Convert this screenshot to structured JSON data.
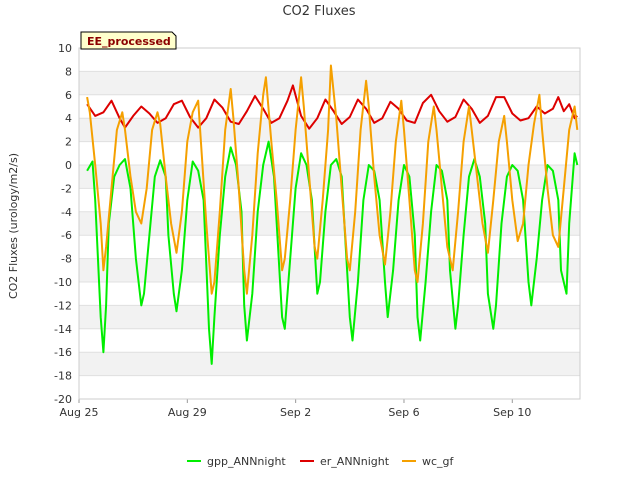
{
  "chart_data": {
    "type": "line",
    "title": "CO2 Fluxes",
    "ylabel": "CO2 Fluxes (urology/m2/s)",
    "xlabel": "",
    "badge": "EE_processed",
    "ylim": [
      -20,
      10
    ],
    "yticks": [
      10,
      8,
      6,
      4,
      2,
      0,
      -2,
      -4,
      -6,
      -8,
      -10,
      -12,
      -14,
      -16,
      -18,
      -20
    ],
    "xlim_days": [
      0,
      18.5
    ],
    "xticks": [
      {
        "day": 0,
        "label": "Aug 25"
      },
      {
        "day": 4,
        "label": "Aug 29"
      },
      {
        "day": 8,
        "label": "Sep 2"
      },
      {
        "day": 12,
        "label": "Sep 6"
      },
      {
        "day": 16,
        "label": "Sep 10"
      }
    ],
    "series": [
      {
        "name": "gpp_ANNnight",
        "color": "#00ee00",
        "points": [
          [
            0.3,
            -0.5
          ],
          [
            0.5,
            0.3
          ],
          [
            0.6,
            -3
          ],
          [
            0.8,
            -13
          ],
          [
            0.9,
            -16
          ],
          [
            1.0,
            -12
          ],
          [
            1.1,
            -5
          ],
          [
            1.3,
            -1
          ],
          [
            1.5,
            0
          ],
          [
            1.7,
            0.5
          ],
          [
            1.9,
            -2
          ],
          [
            2.1,
            -8
          ],
          [
            2.3,
            -12
          ],
          [
            2.4,
            -11
          ],
          [
            2.6,
            -6
          ],
          [
            2.8,
            -1
          ],
          [
            3.0,
            0.4
          ],
          [
            3.2,
            -1
          ],
          [
            3.3,
            -6
          ],
          [
            3.5,
            -11
          ],
          [
            3.6,
            -12.5
          ],
          [
            3.8,
            -9
          ],
          [
            4.0,
            -3
          ],
          [
            4.2,
            0.3
          ],
          [
            4.4,
            -0.5
          ],
          [
            4.6,
            -3
          ],
          [
            4.8,
            -14
          ],
          [
            4.9,
            -17
          ],
          [
            5.0,
            -13
          ],
          [
            5.2,
            -6
          ],
          [
            5.4,
            -1
          ],
          [
            5.6,
            1.5
          ],
          [
            5.8,
            0
          ],
          [
            6.0,
            -4
          ],
          [
            6.1,
            -12
          ],
          [
            6.2,
            -15
          ],
          [
            6.4,
            -11
          ],
          [
            6.6,
            -4
          ],
          [
            6.8,
            0
          ],
          [
            7.0,
            2
          ],
          [
            7.2,
            -1
          ],
          [
            7.3,
            -5
          ],
          [
            7.5,
            -13
          ],
          [
            7.6,
            -14
          ],
          [
            7.8,
            -8
          ],
          [
            8.0,
            -2
          ],
          [
            8.2,
            1
          ],
          [
            8.4,
            0
          ],
          [
            8.6,
            -3
          ],
          [
            8.8,
            -11
          ],
          [
            8.9,
            -10
          ],
          [
            9.1,
            -4
          ],
          [
            9.3,
            0
          ],
          [
            9.5,
            0.5
          ],
          [
            9.7,
            -1
          ],
          [
            9.8,
            -5
          ],
          [
            10.0,
            -13
          ],
          [
            10.1,
            -15
          ],
          [
            10.3,
            -10
          ],
          [
            10.5,
            -3
          ],
          [
            10.7,
            0
          ],
          [
            10.9,
            -0.5
          ],
          [
            11.1,
            -3
          ],
          [
            11.3,
            -10
          ],
          [
            11.4,
            -13
          ],
          [
            11.6,
            -9
          ],
          [
            11.8,
            -3
          ],
          [
            12.0,
            0
          ],
          [
            12.2,
            -1
          ],
          [
            12.4,
            -6
          ],
          [
            12.5,
            -13
          ],
          [
            12.6,
            -15
          ],
          [
            12.8,
            -10
          ],
          [
            13.0,
            -4
          ],
          [
            13.2,
            0
          ],
          [
            13.4,
            -0.5
          ],
          [
            13.6,
            -3
          ],
          [
            13.7,
            -9
          ],
          [
            13.9,
            -14
          ],
          [
            14.0,
            -12
          ],
          [
            14.2,
            -6
          ],
          [
            14.4,
            -1
          ],
          [
            14.6,
            0.5
          ],
          [
            14.8,
            -1
          ],
          [
            15.0,
            -5
          ],
          [
            15.1,
            -11
          ],
          [
            15.3,
            -14
          ],
          [
            15.4,
            -12
          ],
          [
            15.6,
            -5
          ],
          [
            15.8,
            -1
          ],
          [
            16.0,
            0
          ],
          [
            16.2,
            -0.5
          ],
          [
            16.4,
            -3
          ],
          [
            16.6,
            -10
          ],
          [
            16.7,
            -12
          ],
          [
            16.9,
            -8
          ],
          [
            17.1,
            -3
          ],
          [
            17.3,
            0
          ],
          [
            17.5,
            -0.5
          ],
          [
            17.7,
            -3
          ],
          [
            17.8,
            -9
          ],
          [
            18.0,
            -11
          ],
          [
            18.1,
            -5
          ],
          [
            18.3,
            1
          ],
          [
            18.4,
            0
          ]
        ]
      },
      {
        "name": "er_ANNnight",
        "color": "#dd0000",
        "points": [
          [
            0.3,
            5.2
          ],
          [
            0.6,
            4.2
          ],
          [
            0.9,
            4.5
          ],
          [
            1.2,
            5.5
          ],
          [
            1.5,
            4.0
          ],
          [
            1.7,
            3.2
          ],
          [
            2.0,
            4.2
          ],
          [
            2.3,
            5.0
          ],
          [
            2.6,
            4.4
          ],
          [
            2.9,
            3.6
          ],
          [
            3.2,
            4.0
          ],
          [
            3.5,
            5.2
          ],
          [
            3.8,
            5.5
          ],
          [
            4.1,
            4.1
          ],
          [
            4.4,
            3.2
          ],
          [
            4.7,
            4.0
          ],
          [
            5.0,
            5.6
          ],
          [
            5.3,
            4.9
          ],
          [
            5.6,
            3.7
          ],
          [
            5.9,
            3.5
          ],
          [
            6.2,
            4.6
          ],
          [
            6.5,
            5.9
          ],
          [
            6.8,
            4.8
          ],
          [
            7.1,
            3.6
          ],
          [
            7.4,
            4.0
          ],
          [
            7.7,
            5.5
          ],
          [
            7.9,
            6.8
          ],
          [
            8.2,
            4.2
          ],
          [
            8.5,
            3.1
          ],
          [
            8.8,
            4.0
          ],
          [
            9.1,
            5.6
          ],
          [
            9.4,
            4.6
          ],
          [
            9.7,
            3.5
          ],
          [
            10.0,
            4.1
          ],
          [
            10.3,
            5.6
          ],
          [
            10.6,
            4.8
          ],
          [
            10.9,
            3.6
          ],
          [
            11.2,
            4.0
          ],
          [
            11.5,
            5.4
          ],
          [
            11.8,
            4.8
          ],
          [
            12.1,
            3.8
          ],
          [
            12.4,
            3.6
          ],
          [
            12.7,
            5.3
          ],
          [
            13.0,
            6.0
          ],
          [
            13.3,
            4.6
          ],
          [
            13.6,
            3.7
          ],
          [
            13.9,
            4.1
          ],
          [
            14.2,
            5.6
          ],
          [
            14.5,
            4.8
          ],
          [
            14.8,
            3.6
          ],
          [
            15.1,
            4.2
          ],
          [
            15.4,
            5.8
          ],
          [
            15.7,
            5.8
          ],
          [
            16.0,
            4.4
          ],
          [
            16.3,
            3.8
          ],
          [
            16.6,
            4.0
          ],
          [
            16.9,
            5.0
          ],
          [
            17.2,
            4.4
          ],
          [
            17.5,
            4.8
          ],
          [
            17.7,
            5.8
          ],
          [
            17.9,
            4.6
          ],
          [
            18.1,
            5.2
          ],
          [
            18.3,
            4.0
          ],
          [
            18.4,
            4.2
          ]
        ]
      },
      {
        "name": "wc_gf",
        "color": "#f5a000",
        "points": [
          [
            0.3,
            5.8
          ],
          [
            0.4,
            4.5
          ],
          [
            0.6,
            0
          ],
          [
            0.8,
            -5
          ],
          [
            0.9,
            -9
          ],
          [
            1.0,
            -7
          ],
          [
            1.2,
            -2
          ],
          [
            1.4,
            3
          ],
          [
            1.6,
            4.5
          ],
          [
            1.7,
            3
          ],
          [
            1.9,
            -1
          ],
          [
            2.1,
            -4
          ],
          [
            2.3,
            -5
          ],
          [
            2.5,
            -2
          ],
          [
            2.7,
            3
          ],
          [
            2.9,
            4.5
          ],
          [
            3.0,
            3.5
          ],
          [
            3.2,
            -1
          ],
          [
            3.4,
            -5
          ],
          [
            3.6,
            -7.5
          ],
          [
            3.8,
            -4
          ],
          [
            4.0,
            2
          ],
          [
            4.2,
            4.5
          ],
          [
            4.4,
            5.5
          ],
          [
            4.5,
            2
          ],
          [
            4.7,
            -5
          ],
          [
            4.9,
            -11
          ],
          [
            5.0,
            -10
          ],
          [
            5.2,
            -4
          ],
          [
            5.4,
            3
          ],
          [
            5.6,
            6.5
          ],
          [
            5.7,
            4
          ],
          [
            5.9,
            -2
          ],
          [
            6.1,
            -9
          ],
          [
            6.2,
            -11
          ],
          [
            6.4,
            -6
          ],
          [
            6.6,
            1
          ],
          [
            6.8,
            6
          ],
          [
            6.9,
            7.5
          ],
          [
            7.1,
            2
          ],
          [
            7.3,
            -3
          ],
          [
            7.5,
            -9
          ],
          [
            7.6,
            -8
          ],
          [
            7.8,
            -3
          ],
          [
            8.0,
            3
          ],
          [
            8.2,
            7.5
          ],
          [
            8.3,
            5
          ],
          [
            8.5,
            -1
          ],
          [
            8.7,
            -7
          ],
          [
            8.8,
            -8
          ],
          [
            9.0,
            -3
          ],
          [
            9.2,
            3
          ],
          [
            9.3,
            8.5
          ],
          [
            9.5,
            4
          ],
          [
            9.7,
            -2
          ],
          [
            9.9,
            -8
          ],
          [
            10.0,
            -9
          ],
          [
            10.2,
            -4
          ],
          [
            10.4,
            3
          ],
          [
            10.6,
            7.2
          ],
          [
            10.7,
            5
          ],
          [
            10.9,
            -1
          ],
          [
            11.1,
            -6
          ],
          [
            11.3,
            -8.5
          ],
          [
            11.5,
            -4
          ],
          [
            11.7,
            2
          ],
          [
            11.9,
            5.5
          ],
          [
            12.0,
            3
          ],
          [
            12.2,
            -3
          ],
          [
            12.4,
            -9
          ],
          [
            12.5,
            -10
          ],
          [
            12.7,
            -5
          ],
          [
            12.9,
            2
          ],
          [
            13.1,
            5.0
          ],
          [
            13.2,
            3
          ],
          [
            13.4,
            -2
          ],
          [
            13.6,
            -7
          ],
          [
            13.8,
            -9
          ],
          [
            14.0,
            -4
          ],
          [
            14.2,
            2
          ],
          [
            14.4,
            5.0
          ],
          [
            14.5,
            3
          ],
          [
            14.7,
            -1
          ],
          [
            14.9,
            -5
          ],
          [
            15.1,
            -7.5
          ],
          [
            15.3,
            -3
          ],
          [
            15.5,
            2
          ],
          [
            15.7,
            4.2
          ],
          [
            15.8,
            2
          ],
          [
            16.0,
            -3
          ],
          [
            16.2,
            -6.5
          ],
          [
            16.4,
            -5
          ],
          [
            16.6,
            0
          ],
          [
            16.8,
            3.5
          ],
          [
            17.0,
            6.0
          ],
          [
            17.1,
            3
          ],
          [
            17.3,
            -2
          ],
          [
            17.5,
            -6
          ],
          [
            17.7,
            -7
          ],
          [
            17.9,
            -2
          ],
          [
            18.1,
            3
          ],
          [
            18.3,
            5
          ],
          [
            18.4,
            3
          ]
        ]
      }
    ],
    "legend": {
      "position": "bottom"
    }
  }
}
